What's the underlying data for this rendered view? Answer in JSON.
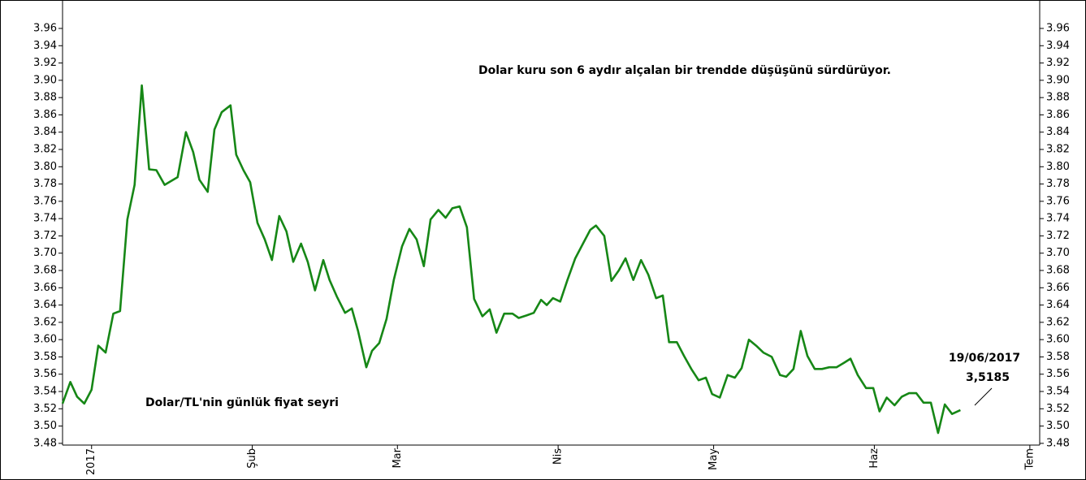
{
  "chart_data": {
    "type": "line",
    "annotations": [
      "Dolar kuru son 6 aydır alçalan bir trendde düşüşünü sürdürüyor.",
      "Dolar/TL'nin günlük fiyat seyri",
      "19/06/2017",
      "3,5185"
    ],
    "x": [
      -5.6,
      -4.1,
      -2.8,
      -1.4,
      0,
      1.3,
      2.7,
      4.2,
      5.5,
      6.9,
      8.3,
      9.7,
      11.1,
      12.5,
      14.1,
      15.5,
      16.6,
      18.2,
      19.6,
      20.8,
      22.4,
      23.7,
      25.1,
      26.8,
      27.9,
      29.3,
      30.6,
      32.0,
      33.4,
      34.8,
      36.2,
      37.6,
      38.9,
      40.4,
      41.7,
      43.1,
      44.7,
      45.9,
      47.3,
      48.9,
      50.2,
      51.4,
      53.0,
      54.1,
      55.5,
      56.9,
      58.3,
      59.9,
      61.3,
      62.7,
      64.1,
      65.4,
      66.9,
      68.3,
      69.6,
      71.0,
      72.4,
      73.8,
      75.4,
      76.8,
      78.1,
      79.6,
      81.2,
      82.4,
      83.9,
      85.3,
      86.7,
      87.8,
      89.0,
      90.4,
      91.8,
      93.3,
      94.8,
      96.2,
      97.3,
      98.9,
      100.3,
      101.7,
      103.0,
      104.5,
      106.0,
      107.4,
      108.9,
      110.2,
      111.4,
      112.9,
      114.3,
      115.7,
      117.1,
      118.5,
      119.7,
      121.2,
      122.7,
      124.1,
      125.4,
      126.8,
      128.2,
      129.6,
      131.2,
      132.8,
      134.0,
      135.4,
      136.8,
      138.1,
      139.5,
      140.9,
      142.3,
      143.7,
      145.1,
      146.4,
      147.8,
      149.4,
      150.8,
      152.0,
      153.4,
      154.9,
      156.3,
      157.7,
      159.1,
      160.5,
      161.9,
      163.3,
      164.6,
      166.0,
      167.6
    ],
    "series": [
      {
        "color": "#168716",
        "values": [
          3.526,
          3.551,
          3.534,
          3.526,
          3.542,
          3.593,
          3.585,
          3.63,
          3.633,
          3.739,
          3.779,
          3.894,
          3.797,
          3.796,
          3.779,
          3.784,
          3.788,
          3.84,
          3.817,
          3.785,
          3.771,
          3.843,
          3.863,
          3.871,
          3.814,
          3.796,
          3.782,
          3.735,
          3.716,
          3.692,
          3.743,
          3.725,
          3.69,
          3.711,
          3.69,
          3.657,
          3.692,
          3.669,
          3.65,
          3.631,
          3.636,
          3.61,
          3.568,
          3.587,
          3.596,
          3.624,
          3.669,
          3.708,
          3.728,
          3.716,
          3.685,
          3.739,
          3.75,
          3.741,
          3.752,
          3.754,
          3.73,
          3.647,
          3.627,
          3.635,
          3.608,
          3.63,
          3.63,
          3.625,
          3.628,
          3.631,
          3.646,
          3.64,
          3.648,
          3.644,
          3.669,
          3.694,
          3.711,
          3.727,
          3.732,
          3.72,
          3.668,
          3.68,
          3.694,
          3.669,
          3.692,
          3.675,
          3.648,
          3.651,
          3.597,
          3.597,
          3.581,
          3.566,
          3.553,
          3.556,
          3.537,
          3.533,
          3.559,
          3.556,
          3.567,
          3.6,
          3.593,
          3.585,
          3.58,
          3.559,
          3.557,
          3.566,
          3.61,
          3.581,
          3.566,
          3.566,
          3.568,
          3.568,
          3.573,
          3.578,
          3.559,
          3.544,
          3.544,
          3.517,
          3.533,
          3.524,
          3.534,
          3.538,
          3.538,
          3.527,
          3.527,
          3.492,
          3.525,
          3.514,
          3.5185
        ]
      }
    ],
    "xlim": [
      -5.6,
      182.9
    ],
    "xticks": [
      {
        "value": 0,
        "label": "2017"
      },
      {
        "value": 31,
        "label": "Şub"
      },
      {
        "value": 59,
        "label": "Mar"
      },
      {
        "value": 90,
        "label": "Nis"
      },
      {
        "value": 120,
        "label": "May"
      },
      {
        "value": 151,
        "label": "Haz"
      },
      {
        "value": 181,
        "label": "Tem"
      }
    ],
    "ylim": [
      3.478,
      3.991
    ],
    "yticks": [
      3.48,
      {
        "value": 3.5,
        "label": "3.50"
      },
      3.52,
      3.54,
      3.56,
      3.58,
      {
        "value": 3.6,
        "label": "3.60"
      },
      3.62,
      3.64,
      3.66,
      3.68,
      {
        "value": 3.7,
        "label": "3.70"
      },
      3.72,
      3.74,
      3.76,
      3.78,
      {
        "value": 3.8,
        "label": "3.80"
      },
      3.82,
      3.84,
      3.86,
      3.88,
      {
        "value": 3.9,
        "label": "3.90"
      },
      3.92,
      3.94,
      3.96
    ]
  }
}
